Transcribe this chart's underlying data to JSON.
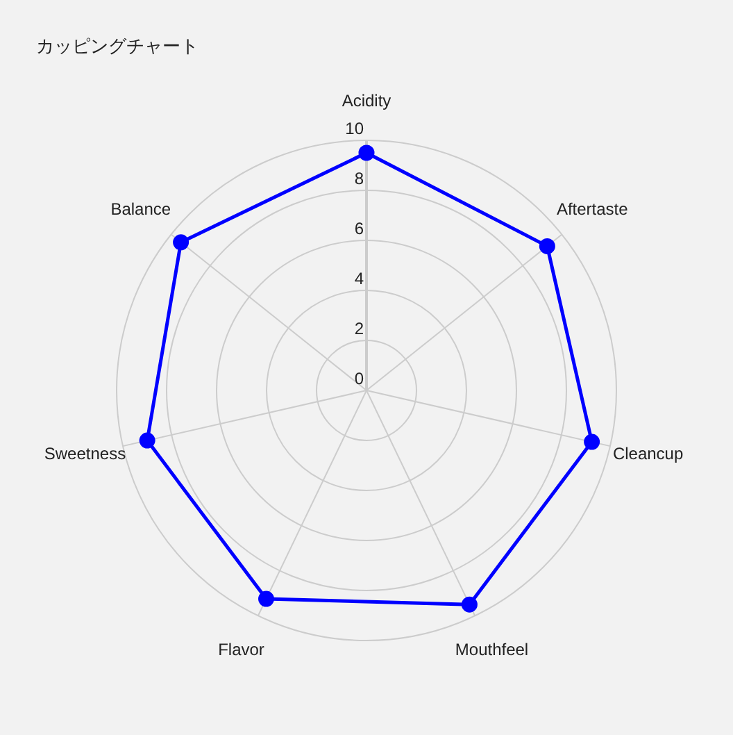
{
  "chart_data": {
    "type": "radar",
    "title": "カッピングチャート",
    "categories": [
      "Acidity",
      "Aftertaste",
      "Cleancup",
      "Mouthfeel",
      "Flavor",
      "Sweetness",
      "Balance"
    ],
    "series": [
      {
        "color": "#0000ff",
        "values": [
          9.5,
          9.25,
          9.25,
          9.5,
          9.25,
          9.0,
          9.5
        ]
      }
    ],
    "ylim": [
      0,
      10
    ],
    "yticks": [
      0,
      2,
      4,
      6,
      8,
      10
    ],
    "grid": true,
    "marker": "circle"
  }
}
